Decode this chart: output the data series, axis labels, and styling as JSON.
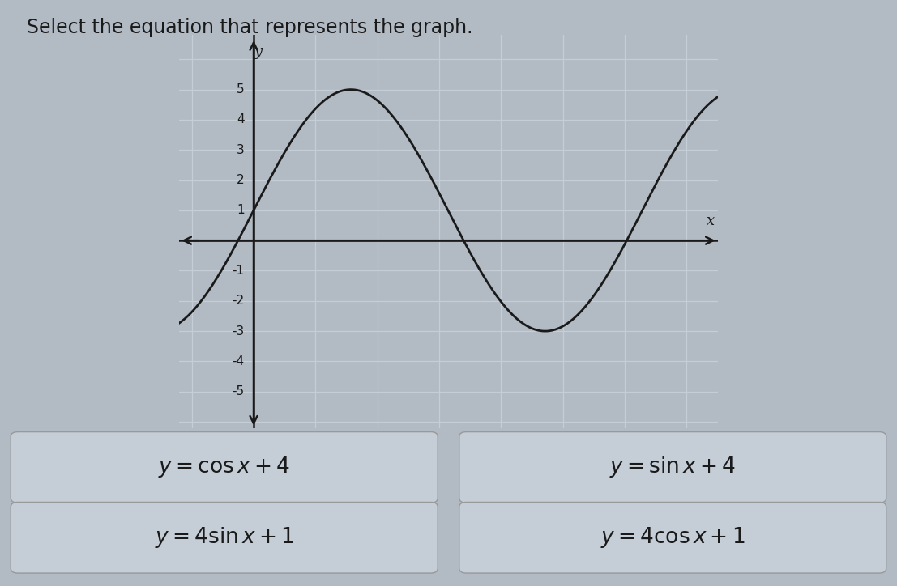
{
  "title": "Select the equation that represents the graph.",
  "title_fontsize": 17,
  "background_color": "#b2bac4",
  "plot_bg_color": "#b2bac4",
  "grid_color": "#c5cdd6",
  "curve_color": "#1a1a1a",
  "curve_lw": 2.0,
  "axis_color": "#1a1a1a",
  "amplitude": 4,
  "vertical_shift": 1,
  "x_range": [
    -1.2,
    7.5
  ],
  "y_range": [
    -6.2,
    6.8
  ],
  "yticks": [
    -5,
    -4,
    -3,
    -2,
    -1,
    1,
    2,
    3,
    4,
    5
  ],
  "options": [
    {
      "text": "$y = \\cos x + 4$",
      "col": 0,
      "row": 0
    },
    {
      "text": "$y = \\sin x + 4$",
      "col": 1,
      "row": 0
    },
    {
      "text": "$y = 4\\sin x + 1$",
      "col": 0,
      "row": 1
    },
    {
      "text": "$y = 4\\cos x + 1$",
      "col": 1,
      "row": 1
    }
  ],
  "option_fontsize": 19,
  "option_bg": "#c5cdd6",
  "option_border": "#999999"
}
